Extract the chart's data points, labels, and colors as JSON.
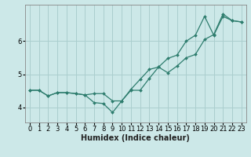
{
  "xlabel": "Humidex (Indice chaleur)",
  "background_color": "#cce8e8",
  "grid_color": "#aacece",
  "line_color": "#2e7d6e",
  "xlim": [
    -0.5,
    23.5
  ],
  "ylim": [
    3.55,
    7.1
  ],
  "yticks": [
    4,
    5,
    6
  ],
  "xticks": [
    0,
    1,
    2,
    3,
    4,
    5,
    6,
    7,
    8,
    9,
    10,
    11,
    12,
    13,
    14,
    15,
    16,
    17,
    18,
    19,
    20,
    21,
    22,
    23
  ],
  "line1_x": [
    0,
    1,
    2,
    3,
    4,
    5,
    6,
    7,
    8,
    9,
    10,
    11,
    12,
    13,
    14,
    15,
    16,
    17,
    18,
    19,
    20,
    21,
    22,
    23
  ],
  "line1_y": [
    4.52,
    4.52,
    4.35,
    4.45,
    4.45,
    4.42,
    4.38,
    4.42,
    4.42,
    4.2,
    4.2,
    4.55,
    4.85,
    5.15,
    5.22,
    5.48,
    5.58,
    6.0,
    6.18,
    6.75,
    6.18,
    6.75,
    6.62,
    6.58
  ],
  "line2_x": [
    0,
    1,
    2,
    3,
    4,
    5,
    6,
    7,
    8,
    9,
    10,
    11,
    12,
    13,
    14,
    15,
    16,
    17,
    18,
    19,
    20,
    21,
    22,
    23
  ],
  "line2_y": [
    4.52,
    4.52,
    4.35,
    4.45,
    4.45,
    4.42,
    4.38,
    4.15,
    4.12,
    3.85,
    4.2,
    4.52,
    4.52,
    4.88,
    5.22,
    5.05,
    5.25,
    5.5,
    5.6,
    6.05,
    6.2,
    6.82,
    6.62,
    6.58
  ],
  "axis_fontsize": 7,
  "tick_fontsize": 6,
  "figsize": [
    3.2,
    2.0
  ],
  "dpi": 100
}
